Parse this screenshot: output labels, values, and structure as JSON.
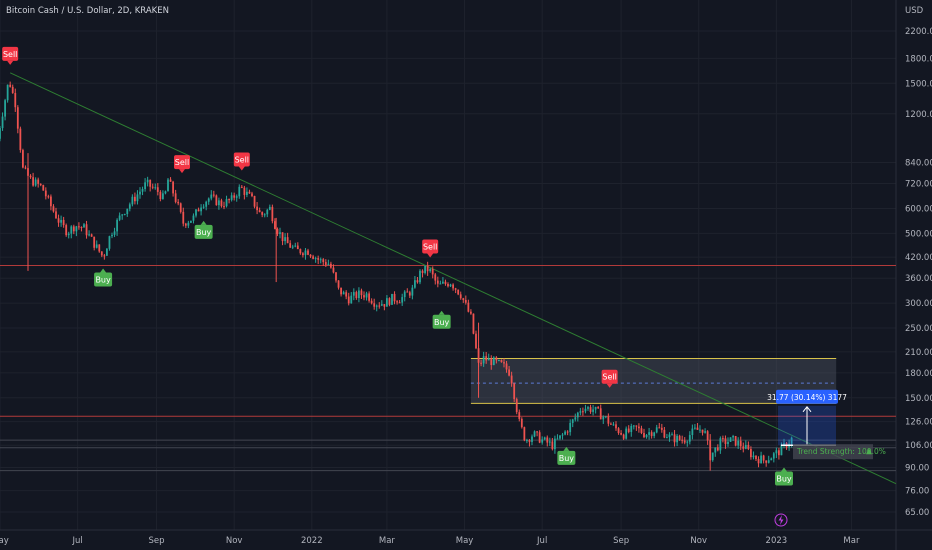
{
  "header": {
    "title": "Bitcoin Cash / U.S. Dollar, 2D, KRAKEN",
    "currency": "USD"
  },
  "colors": {
    "background": "#131722",
    "grid": "#1e222d",
    "bull": "#26a69a",
    "bear": "#ef5350",
    "sell": "#f23645",
    "buy": "#4caf50",
    "trendline": "#2e7d32",
    "zone_border": "#d8c24a",
    "info_box": "#2962ff"
  },
  "chart_data": {
    "type": "candlestick",
    "scale": "log",
    "y_ticks": [
      2200,
      1800,
      1500,
      1200,
      840,
      720,
      600,
      500,
      420,
      360,
      300,
      250,
      210,
      180,
      150,
      126,
      106,
      90,
      76,
      65
    ],
    "x_ticks": [
      "May",
      "Jul",
      "Sep",
      "Nov",
      "2022",
      "Mar",
      "May",
      "Jul",
      "Sep",
      "Nov",
      "2023",
      "Mar"
    ],
    "x_range": [
      "2021-05-01",
      "2023-04-05"
    ],
    "close_path": [
      [
        "2021-04-29",
        1000
      ],
      [
        "2021-05-08",
        1540
      ],
      [
        "2021-05-13",
        1300
      ],
      [
        "2021-05-19",
        800
      ],
      [
        "2021-05-25",
        740
      ],
      [
        "2021-06-03",
        700
      ],
      [
        "2021-06-10",
        610
      ],
      [
        "2021-06-17",
        540
      ],
      [
        "2021-06-23",
        505
      ],
      [
        "2021-06-29",
        530
      ],
      [
        "2021-07-06",
        520
      ],
      [
        "2021-07-13",
        470
      ],
      [
        "2021-07-21",
        420
      ],
      [
        "2021-07-27",
        500
      ],
      [
        "2021-08-05",
        580
      ],
      [
        "2021-08-15",
        650
      ],
      [
        "2021-08-24",
        720
      ],
      [
        "2021-09-02",
        680
      ],
      [
        "2021-09-07",
        640
      ],
      [
        "2021-09-10",
        740
      ],
      [
        "2021-09-15",
        660
      ],
      [
        "2021-09-22",
        540
      ],
      [
        "2021-09-30",
        560
      ],
      [
        "2021-10-06",
        620
      ],
      [
        "2021-10-13",
        650
      ],
      [
        "2021-10-22",
        620
      ],
      [
        "2021-10-30",
        640
      ],
      [
        "2021-11-06",
        700
      ],
      [
        "2021-11-15",
        640
      ],
      [
        "2021-11-22",
        570
      ],
      [
        "2021-11-29",
        600
      ],
      [
        "2021-12-04",
        520
      ],
      [
        "2021-12-11",
        470
      ],
      [
        "2021-12-20",
        440
      ],
      [
        "2021-12-29",
        440
      ],
      [
        "2022-01-07",
        410
      ],
      [
        "2022-01-15",
        400
      ],
      [
        "2022-01-22",
        330
      ],
      [
        "2022-01-30",
        310
      ],
      [
        "2022-02-07",
        320
      ],
      [
        "2022-02-13",
        320
      ],
      [
        "2022-02-20",
        300
      ],
      [
        "2022-02-27",
        300
      ],
      [
        "2022-03-05",
        310
      ],
      [
        "2022-03-12",
        310
      ],
      [
        "2022-03-21",
        330
      ],
      [
        "2022-03-28",
        380
      ],
      [
        "2022-04-03",
        385
      ],
      [
        "2022-04-10",
        340
      ],
      [
        "2022-04-20",
        350
      ],
      [
        "2022-04-28",
        320
      ],
      [
        "2022-05-06",
        270
      ],
      [
        "2022-05-12",
        190
      ],
      [
        "2022-05-16",
        200
      ],
      [
        "2022-05-24",
        195
      ],
      [
        "2022-05-31",
        190
      ],
      [
        "2022-06-06",
        180
      ],
      [
        "2022-06-13",
        125
      ],
      [
        "2022-06-18",
        110
      ],
      [
        "2022-06-24",
        115
      ],
      [
        "2022-07-01",
        110
      ],
      [
        "2022-07-09",
        106
      ],
      [
        "2022-07-18",
        115
      ],
      [
        "2022-07-26",
        128
      ],
      [
        "2022-08-01",
        140
      ],
      [
        "2022-08-10",
        138
      ],
      [
        "2022-08-19",
        130
      ],
      [
        "2022-08-25",
        122
      ],
      [
        "2022-09-03",
        115
      ],
      [
        "2022-09-13",
        120
      ],
      [
        "2022-09-20",
        115
      ],
      [
        "2022-09-30",
        120
      ],
      [
        "2022-10-10",
        112
      ],
      [
        "2022-10-20",
        110
      ],
      [
        "2022-10-29",
        118
      ],
      [
        "2022-11-05",
        120
      ],
      [
        "2022-11-10",
        98
      ],
      [
        "2022-11-18",
        108
      ],
      [
        "2022-11-28",
        110
      ],
      [
        "2022-12-06",
        105
      ],
      [
        "2022-12-15",
        97
      ],
      [
        "2022-12-22",
        95
      ],
      [
        "2022-12-29",
        98
      ],
      [
        "2023-01-04",
        102
      ],
      [
        "2023-01-10",
        108
      ],
      [
        "2023-01-14",
        112
      ]
    ],
    "signals": [
      {
        "type": "Sell",
        "date": "2021-05-09",
        "price": 1680
      },
      {
        "type": "Buy",
        "date": "2021-07-21",
        "price": 395
      },
      {
        "type": "Sell",
        "date": "2021-09-21",
        "price": 760
      },
      {
        "type": "Buy",
        "date": "2021-10-08",
        "price": 560
      },
      {
        "type": "Sell",
        "date": "2021-11-07",
        "price": 775
      },
      {
        "type": "Sell",
        "date": "2022-04-04",
        "price": 410
      },
      {
        "type": "Buy",
        "date": "2022-04-13",
        "price": 290
      },
      {
        "type": "Buy",
        "date": "2022-07-20",
        "price": 107
      },
      {
        "type": "Sell",
        "date": "2022-08-23",
        "price": 158
      },
      {
        "type": "Buy",
        "date": "2023-01-07",
        "price": 92
      }
    ],
    "trendline": [
      [
        "2021-05-09",
        1620
      ],
      [
        "2023-04-05",
        80
      ]
    ],
    "horizontal_lines": [
      {
        "price": 395,
        "color": "#b23a3a"
      },
      {
        "price": 131,
        "color": "#b23a3a"
      },
      {
        "price": 110,
        "color": "#434651"
      },
      {
        "price": 104,
        "color": "#434651"
      },
      {
        "price": 88,
        "color": "#434651"
      }
    ],
    "zone": {
      "start": "2022-05-06",
      "end": "2023-02-17",
      "top": 200,
      "bottom": 144,
      "mid": 167
    },
    "measure": {
      "label": "31.77 (30.14%) 3177",
      "price": 150
    },
    "trend_strength": {
      "label": "Trend Strength:",
      "value": "100.0%"
    }
  }
}
